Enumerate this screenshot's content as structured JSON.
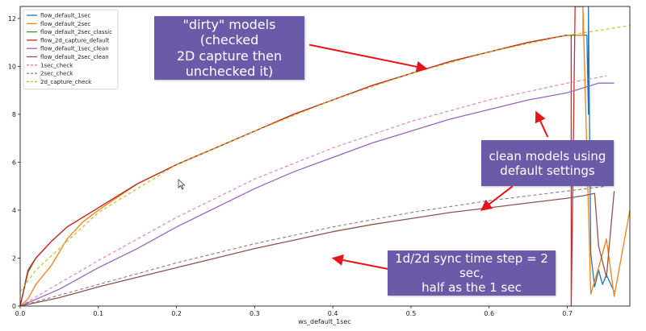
{
  "chart_data": {
    "type": "line",
    "title": "",
    "xlabel": "ws_default_1sec",
    "ylabel": "",
    "xlim": [
      0.0,
      0.78
    ],
    "ylim": [
      0,
      12.5
    ],
    "xticks": [
      {
        "value": 0.0,
        "label": "0.0"
      },
      {
        "value": 0.1,
        "label": "0.1"
      },
      {
        "value": 0.2,
        "label": "0.2"
      },
      {
        "value": 0.3,
        "label": "0.3"
      },
      {
        "value": 0.4,
        "label": "0.4"
      },
      {
        "value": 0.5,
        "label": "0.5"
      },
      {
        "value": 0.6,
        "label": "0.6"
      },
      {
        "value": 0.7,
        "label": "0.7"
      }
    ],
    "yticks": [
      {
        "value": 0,
        "label": "0"
      },
      {
        "value": 2,
        "label": "2"
      },
      {
        "value": 4,
        "label": "4"
      },
      {
        "value": 6,
        "label": "6"
      },
      {
        "value": 8,
        "label": "8"
      },
      {
        "value": 10,
        "label": "10"
      },
      {
        "value": 12,
        "label": "12"
      }
    ],
    "grid": false,
    "legend_position": "top-left",
    "series": [
      {
        "name": "flow_default_1sec",
        "color": "#1f77b4",
        "dashed": false,
        "x": [
          0.0,
          0.01,
          0.02,
          0.04,
          0.06,
          0.1,
          0.15,
          0.2,
          0.25,
          0.3,
          0.35,
          0.4,
          0.45,
          0.5,
          0.55,
          0.6,
          0.65,
          0.7,
          0.725,
          0.727,
          0.727,
          0.73,
          0.735,
          0.74,
          0.745,
          0.75,
          0.76
        ],
        "y": [
          0.0,
          1.5,
          2.0,
          2.7,
          3.3,
          4.1,
          5.1,
          5.9,
          6.6,
          7.3,
          8.0,
          8.6,
          9.2,
          9.7,
          10.2,
          10.6,
          11.0,
          11.3,
          11.3,
          8.0,
          12.5,
          2.2,
          0.8,
          1.5,
          0.9,
          1.3,
          0.6
        ]
      },
      {
        "name": "flow_default_2sec",
        "color": "#ff7f0e",
        "dashed": false,
        "x": [
          0.0,
          0.01,
          0.02,
          0.04,
          0.06,
          0.08,
          0.1,
          0.15,
          0.2,
          0.25,
          0.3,
          0.35,
          0.4,
          0.45,
          0.5,
          0.55,
          0.6,
          0.65,
          0.7,
          0.72,
          0.72,
          0.73,
          0.74,
          0.75,
          0.76,
          0.78
        ],
        "y": [
          0.0,
          0.3,
          0.9,
          1.7,
          2.8,
          3.5,
          4.0,
          5.1,
          5.9,
          6.6,
          7.3,
          8.0,
          8.6,
          9.2,
          9.7,
          10.2,
          10.6,
          11.0,
          11.3,
          11.3,
          12.5,
          0.5,
          1.6,
          2.8,
          0.4,
          4.0
        ]
      },
      {
        "name": "flow_default_2sec_classic",
        "color": "#2ca02c",
        "dashed": false,
        "x": [
          0.0,
          0.01,
          0.02,
          0.04,
          0.06,
          0.1,
          0.15,
          0.2,
          0.25,
          0.3,
          0.35,
          0.4,
          0.45,
          0.5,
          0.55,
          0.6,
          0.65,
          0.7,
          0.71
        ],
        "y": [
          0.0,
          1.4,
          2.0,
          2.7,
          3.3,
          4.1,
          5.1,
          5.9,
          6.6,
          7.3,
          8.0,
          8.6,
          9.2,
          9.7,
          10.2,
          10.6,
          11.0,
          11.3,
          11.3
        ]
      },
      {
        "name": "flow_2d_capture_default",
        "color": "#d62728",
        "dashed": false,
        "x": [
          0.0,
          0.01,
          0.02,
          0.04,
          0.06,
          0.1,
          0.15,
          0.2,
          0.25,
          0.3,
          0.35,
          0.4,
          0.45,
          0.5,
          0.55,
          0.6,
          0.65,
          0.7,
          0.705,
          0.705,
          0.71,
          0.715,
          0.72
        ],
        "y": [
          0.0,
          1.5,
          2.0,
          2.7,
          3.3,
          4.1,
          5.1,
          5.9,
          6.6,
          7.3,
          8.0,
          8.6,
          9.2,
          9.7,
          10.2,
          10.6,
          11.0,
          11.3,
          11.3,
          0.0,
          12.5,
          12.5,
          12.5
        ]
      },
      {
        "name": "flow_default_1sec_clean",
        "color": "#9467bd",
        "dashed": false,
        "x": [
          0.0,
          0.05,
          0.1,
          0.15,
          0.2,
          0.25,
          0.3,
          0.35,
          0.4,
          0.45,
          0.5,
          0.55,
          0.6,
          0.65,
          0.7,
          0.72,
          0.74,
          0.76
        ],
        "y": [
          0.0,
          0.7,
          1.6,
          2.4,
          3.3,
          4.1,
          4.9,
          5.6,
          6.2,
          6.8,
          7.3,
          7.8,
          8.2,
          8.6,
          8.9,
          9.1,
          9.3,
          9.3
        ]
      },
      {
        "name": "flow_default_2sec_clean",
        "color": "#8c564b",
        "dashed": false,
        "x": [
          0.0,
          0.05,
          0.1,
          0.15,
          0.2,
          0.25,
          0.3,
          0.35,
          0.4,
          0.45,
          0.5,
          0.55,
          0.6,
          0.65,
          0.7,
          0.72,
          0.735,
          0.74,
          0.75,
          0.76
        ],
        "y": [
          0.0,
          0.35,
          0.8,
          1.2,
          1.6,
          2.0,
          2.4,
          2.75,
          3.1,
          3.4,
          3.65,
          3.9,
          4.1,
          4.3,
          4.5,
          4.6,
          4.7,
          2.5,
          1.2,
          4.8
        ]
      },
      {
        "name": "1sec_check",
        "color": "#e377c2",
        "dashed": true,
        "x": [
          0.0,
          0.1,
          0.2,
          0.3,
          0.4,
          0.5,
          0.6,
          0.7,
          0.75
        ],
        "y": [
          0.0,
          1.9,
          3.7,
          5.3,
          6.6,
          7.7,
          8.6,
          9.3,
          9.6
        ]
      },
      {
        "name": "2sec_check",
        "color": "#7f7f7f",
        "dashed": true,
        "x": [
          0.0,
          0.1,
          0.2,
          0.3,
          0.4,
          0.5,
          0.6,
          0.7,
          0.75
        ],
        "y": [
          0.0,
          0.9,
          1.8,
          2.6,
          3.3,
          3.9,
          4.4,
          4.8,
          5.0
        ]
      },
      {
        "name": "2d_capture_check",
        "color": "#bcbd22",
        "dashed": true,
        "x": [
          0.0,
          0.02,
          0.05,
          0.1,
          0.2,
          0.3,
          0.4,
          0.5,
          0.6,
          0.7,
          0.78
        ],
        "y": [
          0.6,
          1.5,
          2.4,
          3.9,
          5.9,
          7.3,
          8.6,
          9.7,
          10.6,
          11.3,
          11.7
        ]
      }
    ]
  },
  "annotations": [
    {
      "text": "\"dirty\" models (checked\n2D capture then\nunchecked it)",
      "arrow_from": [
        0.37,
        10.9
      ],
      "arrow_to": [
        0.52,
        9.9
      ]
    },
    {
      "text": "clean models using\ndefault settings",
      "arrow_from": [
        0.675,
        7.05
      ],
      "arrow_to": [
        0.66,
        8.1
      ]
    },
    {
      "text": "1d/2d sync time step = 2 sec,\nhalf as the 1 sec",
      "arrow_from": [
        0.47,
        1.55
      ],
      "arrow_to": [
        0.4,
        2.0
      ]
    }
  ],
  "extra_arrows": [
    {
      "arrow_from": [
        0.63,
        5.0
      ],
      "arrow_to": [
        0.59,
        4.0
      ]
    }
  ],
  "colors": {
    "callout": "#6b5aa8",
    "arrow": "#e8141b"
  }
}
